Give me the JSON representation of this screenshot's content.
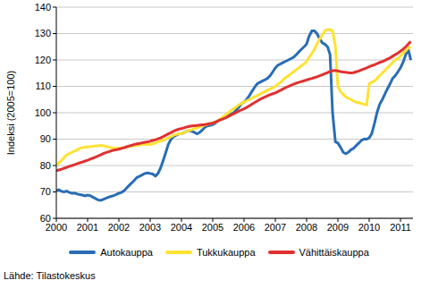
{
  "chart_data": {
    "type": "line",
    "y_label": "Indeksi (2005=100)",
    "annotations": [
      "Lähde: Tilastokeskus"
    ],
    "x": [
      2000,
      2000.08,
      2000.17,
      2000.25,
      2000.33,
      2000.42,
      2000.5,
      2000.58,
      2000.67,
      2000.75,
      2000.83,
      2000.92,
      2001,
      2001.08,
      2001.17,
      2001.25,
      2001.33,
      2001.42,
      2001.5,
      2001.58,
      2001.67,
      2001.75,
      2001.83,
      2001.92,
      2002,
      2002.08,
      2002.17,
      2002.25,
      2002.33,
      2002.42,
      2002.5,
      2002.58,
      2002.67,
      2002.75,
      2002.83,
      2002.92,
      2003,
      2003.08,
      2003.17,
      2003.25,
      2003.33,
      2003.42,
      2003.5,
      2003.58,
      2003.67,
      2003.75,
      2003.83,
      2003.92,
      2004,
      2004.08,
      2004.17,
      2004.25,
      2004.33,
      2004.42,
      2004.5,
      2004.58,
      2004.67,
      2004.75,
      2004.83,
      2004.92,
      2005,
      2005.08,
      2005.17,
      2005.25,
      2005.33,
      2005.42,
      2005.5,
      2005.58,
      2005.67,
      2005.75,
      2005.83,
      2005.92,
      2006,
      2006.08,
      2006.17,
      2006.25,
      2006.33,
      2006.42,
      2006.5,
      2006.58,
      2006.67,
      2006.75,
      2006.83,
      2006.92,
      2007,
      2007.08,
      2007.17,
      2007.25,
      2007.33,
      2007.42,
      2007.5,
      2007.58,
      2007.67,
      2007.75,
      2007.83,
      2007.92,
      2008,
      2008.08,
      2008.17,
      2008.25,
      2008.33,
      2008.42,
      2008.5,
      2008.58,
      2008.67,
      2008.75,
      2008.83,
      2008.92,
      2009,
      2009.08,
      2009.17,
      2009.25,
      2009.33,
      2009.42,
      2009.5,
      2009.58,
      2009.67,
      2009.75,
      2009.83,
      2009.92,
      2010,
      2010.08,
      2010.17,
      2010.25,
      2010.33,
      2010.42,
      2010.5,
      2010.58,
      2010.67,
      2010.75,
      2010.83,
      2010.92,
      2011,
      2011.08,
      2011.17,
      2011.25,
      2011.33
    ],
    "series": [
      {
        "name": "Autokauppa",
        "color": "#2a6db5",
        "values": [
          70.5,
          70.8,
          70.2,
          70,
          70.3,
          69.8,
          69.5,
          69.6,
          69.2,
          69,
          68.8,
          68.5,
          68.8,
          68.6,
          68,
          67.5,
          67,
          66.8,
          67.2,
          67.6,
          68,
          68.3,
          68.6,
          69,
          69.5,
          69.8,
          70.5,
          71.5,
          72.5,
          73.5,
          74.5,
          75.5,
          76,
          76.5,
          77,
          77.2,
          77,
          76.8,
          76,
          77,
          79,
          82,
          85,
          88,
          90,
          91,
          91.5,
          92,
          92,
          92.5,
          93,
          93.2,
          93,
          92.5,
          92,
          92.5,
          93.5,
          94.5,
          95,
          95.2,
          95.5,
          96,
          97,
          97.5,
          98,
          98.5,
          99,
          99.5,
          100,
          101,
          102,
          103.5,
          104,
          105,
          106.5,
          108,
          109.5,
          111,
          111.5,
          112,
          112.5,
          113,
          114,
          115.5,
          117,
          118,
          118.5,
          119,
          119.5,
          120,
          120.5,
          121,
          122,
          123,
          124,
          125,
          126,
          129,
          131,
          131,
          130,
          128,
          126.5,
          126,
          125,
          122,
          100,
          89,
          88.5,
          87,
          85,
          84.5,
          85,
          86,
          86.5,
          87.5,
          88.5,
          89.5,
          90,
          90,
          90.5,
          92,
          96,
          100,
          103,
          105,
          107,
          109,
          111,
          113,
          114,
          115.5,
          117,
          119,
          122,
          124,
          120
        ]
      },
      {
        "name": "Tukkukauppa",
        "color": "#ffe233",
        "values": [
          80,
          81,
          82,
          83,
          84,
          84.5,
          85,
          85.5,
          86,
          86.5,
          86.8,
          87,
          87,
          87.2,
          87.3,
          87.5,
          87.5,
          87.6,
          87.5,
          87.3,
          87,
          86.8,
          86.6,
          86.5,
          86.5,
          86.6,
          86.8,
          87,
          87.2,
          87.5,
          87.5,
          87.6,
          87.8,
          88,
          88,
          88,
          88,
          88.2,
          88.5,
          89,
          89.3,
          89.5,
          90,
          90.5,
          91,
          91.5,
          91.8,
          92,
          92,
          92.5,
          93,
          93.3,
          93.6,
          94,
          94.3,
          94.6,
          95,
          95.3,
          95.6,
          96,
          96,
          96.5,
          97,
          97.7,
          98.5,
          99.2,
          100,
          100.8,
          101.5,
          102.2,
          103,
          103.5,
          104,
          104.5,
          105,
          105.5,
          106,
          106.5,
          107,
          107.5,
          108,
          108.5,
          109,
          109.5,
          110,
          110.8,
          111.5,
          112.5,
          113.3,
          114,
          114.8,
          115.5,
          116.3,
          117,
          117.8,
          118.5,
          119.5,
          121,
          122.5,
          124,
          126,
          128,
          129.5,
          131,
          131.5,
          131.5,
          131,
          125,
          110,
          108,
          107,
          106,
          105.5,
          105,
          104.5,
          104,
          103.8,
          103.5,
          103.2,
          103,
          111,
          111.5,
          112,
          113,
          114,
          115,
          116,
          117,
          118,
          119,
          120,
          120.5,
          121.5,
          122.5,
          123.5,
          124.5,
          125
        ]
      },
      {
        "name": "Vähittäiskauppa",
        "color": "#e03030",
        "values": [
          78,
          78.3,
          78.6,
          79,
          79.3,
          79.7,
          80,
          80.3,
          80.7,
          81,
          81.3,
          81.7,
          82,
          82.4,
          82.8,
          83.2,
          83.6,
          84,
          84.5,
          84.9,
          85.2,
          85.5,
          85.8,
          86,
          86.2,
          86.5,
          86.8,
          87.1,
          87.4,
          87.7,
          88,
          88.2,
          88.4,
          88.6,
          88.8,
          89,
          89.2,
          89.5,
          89.8,
          90.1,
          90.5,
          91,
          91.5,
          92,
          92.5,
          93,
          93.4,
          93.8,
          94,
          94.3,
          94.6,
          94.8,
          95,
          95.1,
          95.2,
          95.3,
          95.4,
          95.5,
          95.7,
          95.9,
          96.1,
          96.5,
          96.9,
          97.3,
          97.7,
          98.1,
          98.6,
          99.1,
          99.6,
          100.1,
          100.6,
          101.1,
          101.5,
          102,
          102.6,
          103.2,
          103.8,
          104.4,
          105,
          105.5,
          106,
          106.4,
          106.8,
          107.2,
          107.5,
          108,
          108.5,
          109,
          109.5,
          110,
          110.4,
          110.8,
          111.2,
          111.5,
          111.8,
          112.1,
          112.4,
          112.7,
          113,
          113.3,
          113.6,
          114,
          114.4,
          114.8,
          115.2,
          115.6,
          115.9,
          116,
          115.8,
          115.6,
          115.4,
          115.3,
          115.2,
          115.1,
          115.2,
          115.5,
          115.8,
          116.2,
          116.6,
          117,
          117.4,
          117.8,
          118.2,
          118.6,
          119,
          119.4,
          119.8,
          120.3,
          120.8,
          121.4,
          122,
          122.6,
          123.3,
          124,
          125,
          126,
          127
        ]
      }
    ],
    "xlim": [
      2000,
      2011.4
    ],
    "xticks": [
      2000,
      2001,
      2002,
      2003,
      2004,
      2005,
      2006,
      2007,
      2008,
      2009,
      2010,
      2011
    ],
    "ylim": [
      60,
      140
    ],
    "yticks": [
      60,
      70,
      80,
      90,
      100,
      110,
      120,
      130,
      140
    ],
    "grid": true,
    "legend": "bottom"
  }
}
